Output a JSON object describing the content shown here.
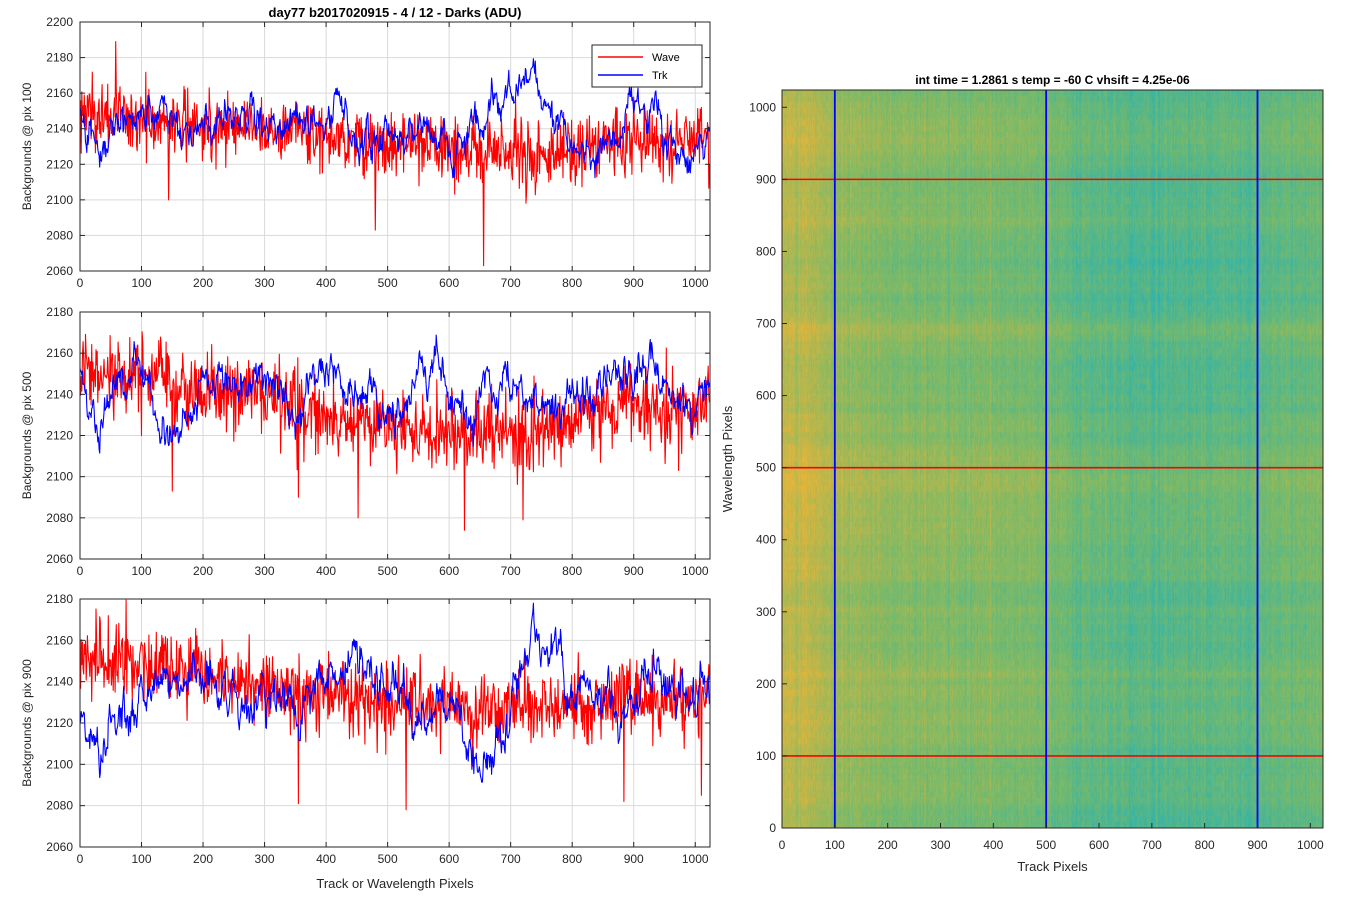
{
  "figure_title": "day77 b2017020915 - 4 / 12 - Darks (ADU)",
  "colors": {
    "wave": "#ff0000",
    "trk": "#0000ff",
    "grid": "#d9d9d9",
    "axis": "#262626"
  },
  "legend": {
    "entries": [
      "Wave",
      "Trk"
    ],
    "placement": "top-right"
  },
  "chart_data": [
    {
      "type": "line",
      "ylabel": "Backgrounds @ pix 100",
      "xlabel": "",
      "xlim": [
        0,
        1024
      ],
      "ylim": [
        2060,
        2200
      ],
      "xticks": [
        0,
        100,
        200,
        300,
        400,
        500,
        600,
        700,
        800,
        900,
        1000
      ],
      "yticks": [
        2060,
        2080,
        2100,
        2120,
        2140,
        2160,
        2180,
        2200
      ],
      "grid": true,
      "series": [
        {
          "name": "Wave",
          "color": "#ff0000",
          "x": [
            0,
            32,
            64,
            96,
            128,
            160,
            192,
            224,
            256,
            288,
            320,
            352,
            384,
            416,
            448,
            480,
            512,
            544,
            576,
            608,
            640,
            672,
            704,
            736,
            768,
            800,
            832,
            864,
            896,
            928,
            960,
            992,
            1024
          ],
          "values": [
            2150,
            2146,
            2148,
            2143,
            2145,
            2142,
            2144,
            2141,
            2143,
            2140,
            2138,
            2141,
            2137,
            2136,
            2134,
            2132,
            2130,
            2131,
            2129,
            2128,
            2126,
            2128,
            2127,
            2125,
            2127,
            2126,
            2130,
            2133,
            2136,
            2134,
            2131,
            2135,
            2137
          ],
          "noise": 15,
          "outliers": [
            [
              58,
              2189
            ],
            [
              656,
              2063
            ],
            [
              272,
              2155
            ],
            [
              480,
              2083
            ],
            [
              144,
              2100
            ]
          ]
        },
        {
          "name": "Trk",
          "color": "#0000ff",
          "x": [
            0,
            32,
            64,
            96,
            128,
            160,
            192,
            224,
            256,
            288,
            320,
            352,
            384,
            416,
            448,
            480,
            512,
            544,
            576,
            608,
            640,
            672,
            704,
            736,
            768,
            800,
            832,
            864,
            896,
            928,
            960,
            992,
            1024
          ],
          "values": [
            2145,
            2122,
            2147,
            2152,
            2150,
            2135,
            2144,
            2140,
            2152,
            2149,
            2140,
            2143,
            2137,
            2153,
            2135,
            2130,
            2143,
            2138,
            2137,
            2128,
            2144,
            2150,
            2162,
            2170,
            2147,
            2128,
            2115,
            2138,
            2150,
            2155,
            2134,
            2118,
            2145
          ],
          "noise": 4,
          "outliers": []
        }
      ]
    },
    {
      "type": "line",
      "ylabel": "Backgrounds @ pix 500",
      "xlabel": "",
      "xlim": [
        0,
        1024
      ],
      "ylim": [
        2060,
        2180
      ],
      "xticks": [
        0,
        100,
        200,
        300,
        400,
        500,
        600,
        700,
        800,
        900,
        1000
      ],
      "yticks": [
        2060,
        2080,
        2100,
        2120,
        2140,
        2160,
        2180
      ],
      "grid": true,
      "series": [
        {
          "name": "Wave",
          "color": "#ff0000",
          "x": [
            0,
            32,
            64,
            96,
            128,
            160,
            192,
            224,
            256,
            288,
            320,
            352,
            384,
            416,
            448,
            480,
            512,
            544,
            576,
            608,
            640,
            672,
            704,
            736,
            768,
            800,
            832,
            864,
            896,
            928,
            960,
            992,
            1024
          ],
          "values": [
            2150,
            2148,
            2147,
            2146,
            2145,
            2142,
            2143,
            2141,
            2140,
            2138,
            2136,
            2133,
            2132,
            2130,
            2128,
            2126,
            2125,
            2122,
            2123,
            2121,
            2122,
            2121,
            2120,
            2122,
            2124,
            2126,
            2128,
            2132,
            2134,
            2133,
            2132,
            2133,
            2134
          ],
          "noise": 15,
          "outliers": [
            [
              150,
              2093
            ],
            [
              355,
              2090
            ],
            [
              452,
              2080
            ],
            [
              625,
              2074
            ],
            [
              720,
              2079
            ]
          ]
        },
        {
          "name": "Trk",
          "color": "#0000ff",
          "x": [
            0,
            32,
            64,
            96,
            128,
            160,
            192,
            224,
            256,
            288,
            320,
            352,
            384,
            416,
            448,
            480,
            512,
            544,
            576,
            608,
            640,
            672,
            704,
            736,
            768,
            800,
            832,
            864,
            896,
            928,
            960,
            992,
            1024
          ],
          "values": [
            2150,
            2126,
            2145,
            2162,
            2122,
            2118,
            2140,
            2150,
            2145,
            2154,
            2140,
            2128,
            2152,
            2148,
            2135,
            2139,
            2130,
            2142,
            2158,
            2134,
            2123,
            2140,
            2145,
            2143,
            2132,
            2136,
            2135,
            2152,
            2147,
            2155,
            2142,
            2135,
            2145
          ],
          "noise": 4,
          "outliers": []
        }
      ]
    },
    {
      "type": "line",
      "ylabel": "Backgrounds @ pix 900",
      "xlabel": "Track or Wavelength Pixels",
      "xlim": [
        0,
        1024
      ],
      "ylim": [
        2060,
        2180
      ],
      "xticks": [
        0,
        100,
        200,
        300,
        400,
        500,
        600,
        700,
        800,
        900,
        1000
      ],
      "yticks": [
        2060,
        2080,
        2100,
        2120,
        2140,
        2160,
        2180
      ],
      "grid": true,
      "series": [
        {
          "name": "Wave",
          "color": "#ff0000",
          "x": [
            0,
            32,
            64,
            96,
            128,
            160,
            192,
            224,
            256,
            288,
            320,
            352,
            384,
            416,
            448,
            480,
            512,
            544,
            576,
            608,
            640,
            672,
            704,
            736,
            768,
            800,
            832,
            864,
            896,
            928,
            960,
            992,
            1024
          ],
          "values": [
            2152,
            2152,
            2150,
            2148,
            2146,
            2145,
            2143,
            2141,
            2140,
            2139,
            2137,
            2135,
            2134,
            2133,
            2132,
            2130,
            2130,
            2130,
            2128,
            2128,
            2127,
            2127,
            2127,
            2126,
            2127,
            2128,
            2128,
            2129,
            2130,
            2131,
            2131,
            2132,
            2135
          ],
          "noise": 15,
          "outliers": [
            [
              75,
              2180
            ],
            [
              355,
              2081
            ],
            [
              530,
              2078
            ],
            [
              884,
              2082
            ],
            [
              1010,
              2085
            ]
          ]
        },
        {
          "name": "Trk",
          "color": "#0000ff",
          "x": [
            0,
            32,
            64,
            96,
            128,
            160,
            192,
            224,
            256,
            288,
            320,
            352,
            384,
            416,
            448,
            480,
            512,
            544,
            576,
            608,
            640,
            672,
            704,
            736,
            768,
            800,
            832,
            864,
            896,
            928,
            960,
            992,
            1024
          ],
          "values": [
            2120,
            2108,
            2128,
            2130,
            2135,
            2140,
            2146,
            2140,
            2132,
            2129,
            2133,
            2132,
            2135,
            2140,
            2155,
            2140,
            2133,
            2125,
            2127,
            2126,
            2102,
            2110,
            2132,
            2165,
            2156,
            2133,
            2132,
            2130,
            2128,
            2145,
            2135,
            2131,
            2135
          ],
          "noise": 4,
          "outliers": []
        }
      ]
    },
    {
      "type": "heatmap",
      "title": "int time = 1.2861 s    temp = -60 C    vhsift = 4.25e-06",
      "xlabel": "Track Pixels",
      "ylabel": "Wavelength Pixels",
      "xlim": [
        0,
        1024
      ],
      "ylim": [
        0,
        1024
      ],
      "xticks": [
        0,
        100,
        200,
        300,
        400,
        500,
        600,
        700,
        800,
        900,
        1000
      ],
      "yticks": [
        0,
        100,
        200,
        300,
        400,
        500,
        600,
        700,
        800,
        900,
        1000
      ],
      "colors": {
        "high": "#e6b53a",
        "mid": "#7cba67",
        "low": "#22b2b8"
      },
      "x_profile": [
        [
          0,
          0.8
        ],
        [
          60,
          0.76
        ],
        [
          100,
          0.63
        ],
        [
          200,
          0.55
        ],
        [
          300,
          0.52
        ],
        [
          450,
          0.48
        ],
        [
          500,
          0.46
        ],
        [
          560,
          0.34
        ],
        [
          700,
          0.3
        ],
        [
          800,
          0.32
        ],
        [
          900,
          0.34
        ],
        [
          1000,
          0.42
        ],
        [
          1024,
          0.44
        ]
      ],
      "vertical_lines": {
        "values": [
          100,
          500,
          900
        ],
        "color": "#0000ff"
      },
      "horizontal_lines": {
        "values": [
          100,
          500,
          900
        ],
        "color": "#ff0000"
      }
    }
  ]
}
